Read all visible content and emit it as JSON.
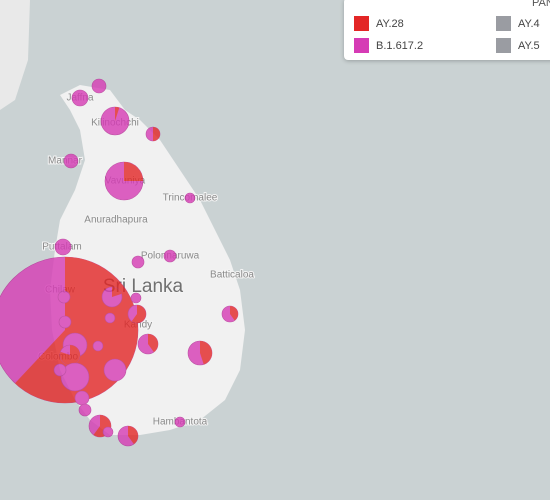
{
  "map": {
    "country": "Sri Lanka",
    "places": [
      "Jaffna",
      "Kilinochchi",
      "Mannar",
      "Vavuniya",
      "Trincomalee",
      "Anuradhapura",
      "Puttalam",
      "Polonnaruwa",
      "Batticaloa",
      "Chilaw",
      "Kandy",
      "Colombo",
      "Hambantota"
    ]
  },
  "legend": {
    "title": "PANGO",
    "items": [
      {
        "label": "AY.28",
        "color": "#e32626"
      },
      {
        "label": "B.1.617.2",
        "color": "#d63bb5"
      },
      {
        "label": "AY.4",
        "color": "#9a9ca2"
      },
      {
        "label": "AY.5",
        "color": "#9a9ca2"
      }
    ]
  }
}
